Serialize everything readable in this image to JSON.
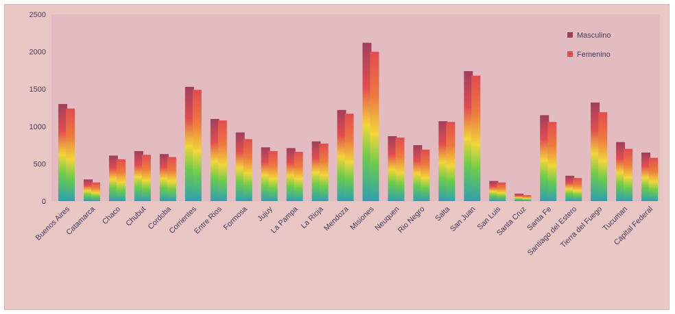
{
  "chart_data": {
    "type": "bar",
    "categories": [
      "Buenos Aires",
      "Catamarca",
      "Chaco",
      "Chubut",
      "Cordoba",
      "Corrientes",
      "Entre Rios",
      "Formosa",
      "Jujuy",
      "La Pampa",
      "La Rioja",
      "Mendoza",
      "Misiones",
      "Neuquen",
      "Rio Negro",
      "Salta",
      "San Juan",
      "San Luis",
      "Santa Cruz",
      "Santa Fe",
      "Santiago del Estero",
      "Tierra del Fuego",
      "Tucuman",
      "Capital Federal"
    ],
    "series": [
      {
        "name": "Masculino",
        "values": [
          1300,
          290,
          610,
          670,
          630,
          1530,
          1100,
          920,
          720,
          710,
          800,
          1220,
          2120,
          870,
          750,
          1070,
          1740,
          270,
          100,
          1150,
          340,
          1320,
          790,
          650
        ]
      },
      {
        "name": "Femenino",
        "values": [
          1240,
          250,
          560,
          620,
          590,
          1490,
          1080,
          830,
          670,
          660,
          770,
          1170,
          2000,
          850,
          690,
          1060,
          1680,
          250,
          80,
          1060,
          310,
          1190,
          700,
          580
        ]
      }
    ],
    "yticks": [
      "0",
      "500",
      "1000",
      "1500",
      "2000",
      "2500"
    ],
    "ylim": [
      0,
      2500
    ],
    "legend_position": "top-right",
    "colors": {
      "frame_bg": "#e9c7c4",
      "plot_bg": "#e3bcc1",
      "bar_top": "#a0405e",
      "bar_upper": "#e24c50",
      "bar_mid": "#f2d63a",
      "bar_low": "#6ccb4c",
      "bar_base": "#2fa0b0",
      "text": "#4a3a5a"
    }
  }
}
